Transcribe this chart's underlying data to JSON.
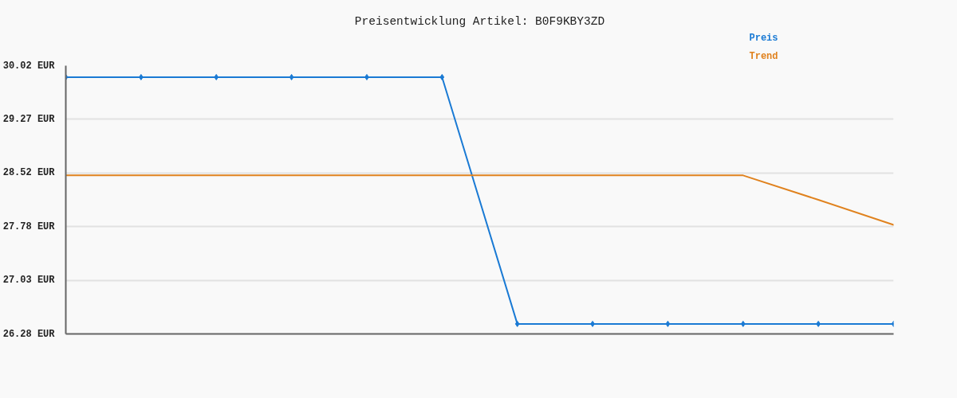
{
  "chart_data": {
    "type": "line",
    "title": "Preisentwicklung Artikel: B0F9KBY3ZD",
    "categories": [
      null,
      null,
      null,
      null,
      null,
      null,
      null,
      null,
      null,
      null,
      null,
      null
    ],
    "series": [
      {
        "name": "Preis",
        "color": "#1a7ad4",
        "marker": "diamond",
        "values": [
          29.86,
          29.86,
          29.86,
          29.86,
          29.86,
          29.86,
          26.42,
          26.42,
          26.42,
          26.42,
          26.42,
          26.42
        ]
      },
      {
        "name": "Trend",
        "color": "#e0821e",
        "marker": "none",
        "values": [
          28.49,
          28.49,
          28.49,
          28.49,
          28.49,
          28.49,
          28.49,
          28.49,
          28.49,
          28.49,
          28.15,
          27.8
        ]
      }
    ],
    "ylim": [
      26.28,
      30.02
    ],
    "yticks": [
      {
        "value": 26.28,
        "label": "26.28 EUR"
      },
      {
        "value": 27.028,
        "label": "27.03 EUR"
      },
      {
        "value": 27.776,
        "label": "27.78 EUR"
      },
      {
        "value": 28.524,
        "label": "28.52 EUR"
      },
      {
        "value": 29.272,
        "label": "29.27 EUR"
      },
      {
        "value": 30.02,
        "label": "30.02 EUR"
      }
    ],
    "grid": "y",
    "legend": "top right",
    "tick_labels": "y"
  }
}
